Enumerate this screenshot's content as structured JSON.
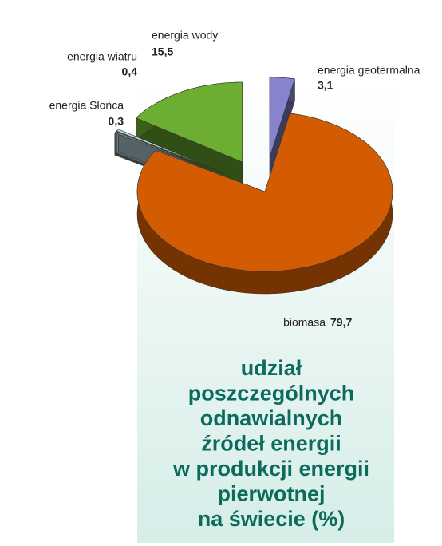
{
  "chart_data": {
    "type": "pie",
    "title": [
      "udział",
      "poszczególnych",
      "odnawialnych",
      "źródeł energii",
      "w produkcji energii",
      "pierwotnej",
      "na świecie (%)"
    ],
    "categories": [
      "energia geotermalna",
      "biomasa",
      "energia Słońca",
      "energia wiatru",
      "energia wody"
    ],
    "values": [
      3.1,
      79.7,
      0.3,
      0.4,
      15.5
    ],
    "value_labels": [
      "3,1",
      "79,7",
      "0,3",
      "0,4",
      "15,5"
    ],
    "colors": [
      "#8584cc",
      "#d35c02",
      "#8c8b72",
      "#bcdbe8",
      "#6cae31"
    ]
  }
}
